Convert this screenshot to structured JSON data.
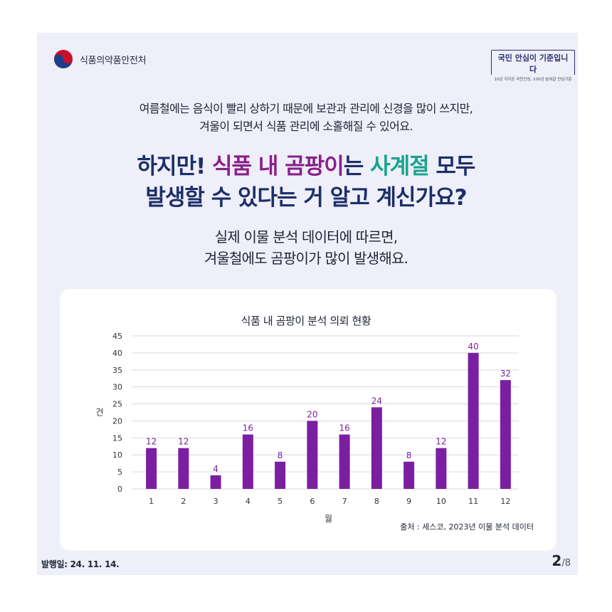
{
  "header": {
    "org_name": "식품의약품안전처",
    "slogan_main": "국민 안심이 기준입니다",
    "slogan_sub": "10년 지키온 국민안심, 100년 높여갈 안심기준"
  },
  "intro": {
    "line1": "여름철에는 음식이 빨리 상하기 때문에 보관과 관리에 신경을 많이 쓰지만,",
    "line2": "겨울이 되면서 식품 관리에 소홀해질 수 있어요."
  },
  "headline": {
    "part1": "하지만! ",
    "part2": "식품 내 곰팡이",
    "part3": "는 ",
    "part4": "사계절",
    "part5": " 모두",
    "line2": "발생할 수 있다는 거 알고 계신가요?"
  },
  "sub": {
    "line1": "실제 이물 분석 데이터에 따르면,",
    "line2": "겨울철에도 곰팡이가 많이 발생해요."
  },
  "chart_data": {
    "type": "bar",
    "title": "식품 내 곰팡이 분석 의뢰 현황",
    "xlabel": "월",
    "ylabel": "건",
    "categories": [
      "1",
      "2",
      "3",
      "4",
      "5",
      "6",
      "7",
      "8",
      "9",
      "10",
      "11",
      "12"
    ],
    "values": [
      12,
      12,
      4,
      16,
      8,
      20,
      16,
      24,
      8,
      12,
      40,
      32
    ],
    "yticks": [
      0,
      5,
      10,
      15,
      20,
      25,
      30,
      35,
      40,
      45
    ],
    "ylim": [
      0,
      45
    ],
    "grid": true,
    "bar_color": "#7b1fa2",
    "label_color": "#7b1fa2"
  },
  "source": "출처 : 세스코, 2023년 이물 분석 데이터",
  "footer": {
    "date": "발행일: 24. 11. 14.",
    "page_current": "2",
    "page_total": "/8"
  },
  "colors": {
    "background": "#eeeff8",
    "headline": "#1d2f6a",
    "accent_purple": "#8a1f8a",
    "accent_teal": "#1aa38f"
  }
}
